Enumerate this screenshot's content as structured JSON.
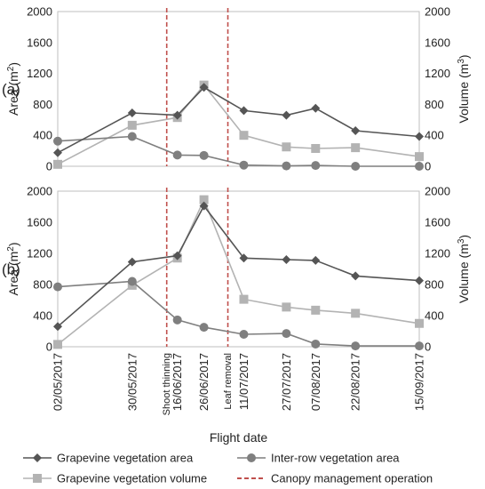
{
  "chart_data": {
    "type": "line",
    "xlabel": "Flight date",
    "x": [
      "02/05/2017",
      "30/05/2017",
      "16/06/2017",
      "26/06/2017",
      "11/07/2017",
      "27/07/2017",
      "07/08/2017",
      "22/08/2017",
      "15/09/2017"
    ],
    "x_day_of_year": [
      122,
      150,
      167,
      177,
      192,
      208,
      219,
      234,
      258
    ],
    "x_range_day_of_year": [
      122,
      258
    ],
    "legend": {
      "position": "bottom",
      "entries": [
        {
          "key": "grape_area",
          "label": "Grapevine vegetation area",
          "color": "#555555",
          "marker": "diamond"
        },
        {
          "key": "inter_area",
          "label": "Inter-row vegetation area",
          "color": "#7f7f7f",
          "marker": "circle"
        },
        {
          "key": "grape_volume",
          "label": "Grapevine vegetation volume",
          "color": "#b3b3b3",
          "marker": "square"
        },
        {
          "key": "canopy_op",
          "label": "Canopy management operation",
          "color": "#c0504d",
          "marker": "dashed-line"
        }
      ]
    },
    "operations": [
      {
        "label": "Shoot thinning",
        "day_of_year": 163
      },
      {
        "label": "Leaf removal",
        "day_of_year": 186
      }
    ],
    "panels": [
      {
        "label": "(a)",
        "ylabel_left_text": "Area (m",
        "ylabel_left_sup": "2",
        "ylabel_right_text": "Volume (m",
        "ylabel_right_sup": "3",
        "ylim": [
          0,
          2000
        ],
        "yticks": [
          0,
          400,
          800,
          1200,
          1600,
          2000
        ],
        "series": [
          {
            "key": "grape_area",
            "values": [
              175,
              690,
              660,
              1020,
              720,
              660,
              750,
              460,
              385
            ]
          },
          {
            "key": "inter_area",
            "values": [
              325,
              385,
              145,
              140,
              15,
              5,
              10,
              0,
              0
            ]
          },
          {
            "key": "grape_volume",
            "values": [
              25,
              530,
              630,
              1050,
              400,
              250,
              230,
              240,
              125
            ]
          }
        ]
      },
      {
        "label": "(b)",
        "ylabel_left_text": "Area (m",
        "ylabel_left_sup": "2",
        "ylabel_right_text": "Volume (m",
        "ylabel_right_sup": "3",
        "ylim": [
          0,
          2000
        ],
        "yticks": [
          0,
          400,
          800,
          1200,
          1600,
          2000
        ],
        "series": [
          {
            "key": "grape_area",
            "values": [
              260,
              1090,
              1170,
              1810,
              1140,
              1120,
              1110,
              910,
              850
            ]
          },
          {
            "key": "inter_area",
            "values": [
              770,
              840,
              345,
              250,
              160,
              170,
              35,
              10,
              10
            ]
          },
          {
            "key": "grape_volume",
            "values": [
              30,
              790,
              1140,
              1890,
              610,
              510,
              470,
              430,
              300
            ]
          }
        ]
      }
    ]
  }
}
